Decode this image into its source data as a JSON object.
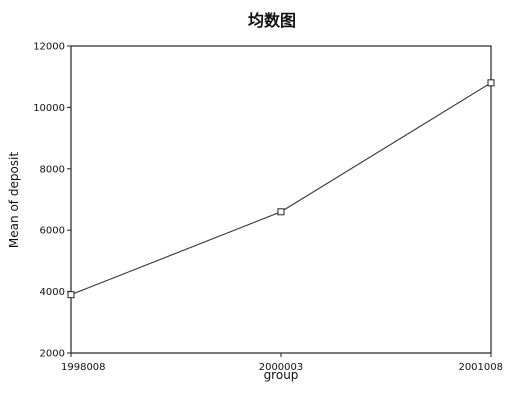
{
  "chart_data": {
    "type": "line",
    "title": "均数图",
    "xlabel": "group",
    "ylabel": "Mean of deposit",
    "categories": [
      "1998008",
      "2000003",
      "2001008"
    ],
    "series": [
      {
        "values": [
          3900,
          6600,
          10800
        ]
      }
    ],
    "ylim": [
      2000,
      12000
    ],
    "yticks": [
      "2000",
      "4000",
      "6000",
      "8000",
      "10000",
      "12000"
    ],
    "grid": false,
    "marker": "square",
    "colors": {
      "line": "#333333",
      "frame": "#222222",
      "background": "#ffffff"
    }
  }
}
